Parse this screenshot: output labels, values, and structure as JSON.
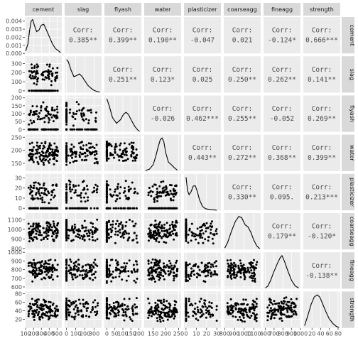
{
  "chart_data": {
    "type": "scatter-matrix",
    "title": "",
    "variables": [
      "cement",
      "slag",
      "flyash",
      "water",
      "plasticizer",
      "coarseagg",
      "fineagg",
      "strength"
    ],
    "row_strip_labels": [
      "cement",
      "slag",
      "flyash",
      "water",
      "plasticizer",
      "coarseagg",
      "fineagg",
      "strength"
    ],
    "corr_label_prefix": "Corr:",
    "correlations": [
      {
        "row": 0,
        "col": 1,
        "label": "0.385**"
      },
      {
        "row": 0,
        "col": 2,
        "label": "0.399**"
      },
      {
        "row": 0,
        "col": 3,
        "label": "0.190**"
      },
      {
        "row": 0,
        "col": 4,
        "label": "-0.047"
      },
      {
        "row": 0,
        "col": 5,
        "label": "0.021"
      },
      {
        "row": 0,
        "col": 6,
        "label": "-0.124*"
      },
      {
        "row": 0,
        "col": 7,
        "label": "0.666***"
      },
      {
        "row": 1,
        "col": 2,
        "label": "0.251**"
      },
      {
        "row": 1,
        "col": 3,
        "label": "0.123*"
      },
      {
        "row": 1,
        "col": 4,
        "label": "0.025"
      },
      {
        "row": 1,
        "col": 5,
        "label": "0.250**"
      },
      {
        "row": 1,
        "col": 6,
        "label": "0.262**"
      },
      {
        "row": 1,
        "col": 7,
        "label": "0.141**"
      },
      {
        "row": 2,
        "col": 3,
        "label": "-0.026"
      },
      {
        "row": 2,
        "col": 4,
        "label": "0.462***"
      },
      {
        "row": 2,
        "col": 5,
        "label": "0.255**"
      },
      {
        "row": 2,
        "col": 6,
        "label": "-0.052"
      },
      {
        "row": 2,
        "col": 7,
        "label": "0.269**"
      },
      {
        "row": 3,
        "col": 4,
        "label": "0.443**"
      },
      {
        "row": 3,
        "col": 5,
        "label": "0.272**"
      },
      {
        "row": 3,
        "col": 6,
        "label": "0.368**"
      },
      {
        "row": 3,
        "col": 7,
        "label": "0.399**"
      },
      {
        "row": 4,
        "col": 5,
        "label": "0.330**"
      },
      {
        "row": 4,
        "col": 6,
        "label": "0.095."
      },
      {
        "row": 4,
        "col": 7,
        "label": "0.213***"
      },
      {
        "row": 5,
        "col": 6,
        "label": "0.179**"
      },
      {
        "row": 5,
        "col": 7,
        "label": "-0.120*"
      },
      {
        "row": 6,
        "col": 7,
        "label": "-0.138**"
      }
    ],
    "y_axes": [
      {
        "row": 0,
        "range": [
          0,
          0.0045
        ],
        "ticks": [
          0.0,
          0.001,
          0.002,
          0.003,
          0.004
        ],
        "tick_labels": [
          "0.000",
          "0.001",
          "0.002",
          "0.003",
          "0.004"
        ]
      },
      {
        "row": 1,
        "range": [
          -20,
          380
        ],
        "ticks": [
          0,
          100,
          200,
          300
        ],
        "tick_labels": [
          "0",
          "100",
          "200",
          "300"
        ]
      },
      {
        "row": 2,
        "range": [
          -15,
          215
        ],
        "ticks": [
          0,
          50,
          100,
          150,
          200
        ],
        "tick_labels": [
          "0",
          "50",
          "100",
          "150",
          "200"
        ]
      },
      {
        "row": 3,
        "range": [
          120,
          260
        ],
        "ticks": [
          150,
          200,
          250
        ],
        "tick_labels": [
          "150",
          "200",
          "250"
        ]
      },
      {
        "row": 4,
        "range": [
          -2,
          34
        ],
        "ticks": [
          0,
          10,
          20,
          30
        ],
        "tick_labels": [
          "0",
          "10",
          "20",
          "30"
        ]
      },
      {
        "row": 5,
        "range": [
          790,
          1170
        ],
        "ticks": [
          800,
          900,
          1000,
          1100
        ],
        "tick_labels": [
          "800",
          "900",
          "1000",
          "1100"
        ]
      },
      {
        "row": 6,
        "range": [
          580,
          1000
        ],
        "ticks": [
          600,
          700,
          800,
          900,
          1000
        ],
        "tick_labels": [
          "600",
          "700",
          "800",
          "900",
          "1000"
        ]
      },
      {
        "row": 7,
        "range": [
          0,
          85
        ],
        "ticks": [
          20,
          40,
          60,
          80
        ],
        "tick_labels": [
          "20",
          "40",
          "60",
          "80"
        ]
      }
    ],
    "x_axes": [
      {
        "col": 0,
        "range": [
          90,
          560
        ],
        "ticks": [
          100,
          200,
          300,
          400,
          500
        ],
        "tick_labels": [
          "100",
          "200",
          "300",
          "400",
          "500"
        ]
      },
      {
        "col": 1,
        "range": [
          -20,
          380
        ],
        "ticks": [
          0,
          100,
          200,
          300
        ],
        "tick_labels": [
          "0",
          "100",
          "200",
          "300"
        ]
      },
      {
        "col": 2,
        "range": [
          -15,
          215
        ],
        "ticks": [
          0,
          50,
          100,
          150,
          200
        ],
        "tick_labels": [
          "0",
          "50",
          "100",
          "150",
          "200"
        ]
      },
      {
        "col": 3,
        "range": [
          115,
          260
        ],
        "ticks": [
          150,
          200,
          250
        ],
        "tick_labels": [
          "150",
          "200",
          "250"
        ]
      },
      {
        "col": 4,
        "range": [
          -2,
          34
        ],
        "ticks": [
          0,
          10,
          20,
          30
        ],
        "tick_labels": [
          "0",
          "10",
          "20",
          "30"
        ]
      },
      {
        "col": 5,
        "range": [
          790,
          1170
        ],
        "ticks": [
          800,
          900,
          1000,
          1100
        ],
        "tick_labels": [
          "800",
          "900",
          "1000",
          "1100"
        ]
      },
      {
        "col": 6,
        "range": [
          580,
          1000
        ],
        "ticks": [
          600,
          700,
          800,
          900,
          1000
        ],
        "tick_labels": [
          "600",
          "700",
          "800",
          "900",
          "1000"
        ]
      },
      {
        "col": 7,
        "range": [
          0,
          85
        ],
        "ticks": [
          20,
          40,
          60,
          80
        ],
        "tick_labels": [
          "20",
          "40",
          "60",
          "80"
        ]
      }
    ],
    "densities": [
      {
        "col": 0,
        "points": [
          [
            100,
            0.0003
          ],
          [
            130,
            0.0012
          ],
          [
            150,
            0.0028
          ],
          [
            170,
            0.004
          ],
          [
            190,
            0.0042
          ],
          [
            210,
            0.0035
          ],
          [
            240,
            0.0027
          ],
          [
            270,
            0.0029
          ],
          [
            300,
            0.0035
          ],
          [
            330,
            0.0036
          ],
          [
            360,
            0.003
          ],
          [
            400,
            0.0021
          ],
          [
            440,
            0.0012
          ],
          [
            480,
            0.0006
          ],
          [
            520,
            0.0003
          ],
          [
            545,
            0.0001
          ]
        ]
      },
      {
        "col": 1,
        "points": [
          [
            0,
            0.0062
          ],
          [
            20,
            0.0058
          ],
          [
            50,
            0.0042
          ],
          [
            80,
            0.003
          ],
          [
            110,
            0.0032
          ],
          [
            140,
            0.0035
          ],
          [
            170,
            0.003
          ],
          [
            200,
            0.0022
          ],
          [
            230,
            0.0014
          ],
          [
            260,
            0.0009
          ],
          [
            290,
            0.0005
          ],
          [
            330,
            0.0002
          ],
          [
            360,
            0.0001
          ]
        ]
      },
      {
        "col": 2,
        "points": [
          [
            0,
            0.0115
          ],
          [
            15,
            0.009
          ],
          [
            35,
            0.005
          ],
          [
            60,
            0.003
          ],
          [
            85,
            0.0042
          ],
          [
            105,
            0.0062
          ],
          [
            120,
            0.0068
          ],
          [
            135,
            0.006
          ],
          [
            155,
            0.0038
          ],
          [
            175,
            0.0018
          ],
          [
            195,
            0.0005
          ],
          [
            205,
            0.0002
          ]
        ]
      },
      {
        "col": 3,
        "points": [
          [
            120,
            0.0003
          ],
          [
            135,
            0.001
          ],
          [
            150,
            0.0035
          ],
          [
            160,
            0.008
          ],
          [
            170,
            0.0135
          ],
          [
            178,
            0.0175
          ],
          [
            185,
            0.0185
          ],
          [
            192,
            0.0165
          ],
          [
            200,
            0.01
          ],
          [
            210,
            0.005
          ],
          [
            222,
            0.0035
          ],
          [
            232,
            0.002
          ],
          [
            245,
            0.0005
          ]
        ]
      },
      {
        "col": 4,
        "points": [
          [
            0,
            0.085
          ],
          [
            1.5,
            0.05
          ],
          [
            3,
            0.04
          ],
          [
            5,
            0.048
          ],
          [
            7,
            0.062
          ],
          [
            9,
            0.063
          ],
          [
            11,
            0.048
          ],
          [
            13,
            0.028
          ],
          [
            16,
            0.01
          ],
          [
            19,
            0.004
          ],
          [
            24,
            0.0015
          ],
          [
            30,
            0.0004
          ]
        ]
      },
      {
        "col": 5,
        "points": [
          [
            800,
            0.0002
          ],
          [
            830,
            0.001
          ],
          [
            870,
            0.0026
          ],
          [
            910,
            0.004
          ],
          [
            945,
            0.0047
          ],
          [
            975,
            0.0045
          ],
          [
            1010,
            0.0035
          ],
          [
            1040,
            0.0032
          ],
          [
            1070,
            0.0024
          ],
          [
            1100,
            0.0013
          ],
          [
            1130,
            0.0005
          ],
          [
            1160,
            0.0001
          ]
        ]
      },
      {
        "col": 6,
        "points": [
          [
            600,
            0.0001
          ],
          [
            630,
            0.0004
          ],
          [
            660,
            0.0012
          ],
          [
            700,
            0.0026
          ],
          [
            740,
            0.0038
          ],
          [
            770,
            0.0046
          ],
          [
            790,
            0.0049
          ],
          [
            820,
            0.004
          ],
          [
            860,
            0.0025
          ],
          [
            900,
            0.0012
          ],
          [
            940,
            0.0004
          ],
          [
            980,
            0.0001
          ]
        ]
      },
      {
        "col": 7,
        "points": [
          [
            3,
            0.0015
          ],
          [
            10,
            0.008
          ],
          [
            18,
            0.016
          ],
          [
            25,
            0.021
          ],
          [
            32,
            0.0225
          ],
          [
            38,
            0.021
          ],
          [
            45,
            0.016
          ],
          [
            52,
            0.011
          ],
          [
            60,
            0.006
          ],
          [
            68,
            0.003
          ],
          [
            75,
            0.0012
          ],
          [
            82,
            0.0003
          ]
        ]
      }
    ]
  }
}
